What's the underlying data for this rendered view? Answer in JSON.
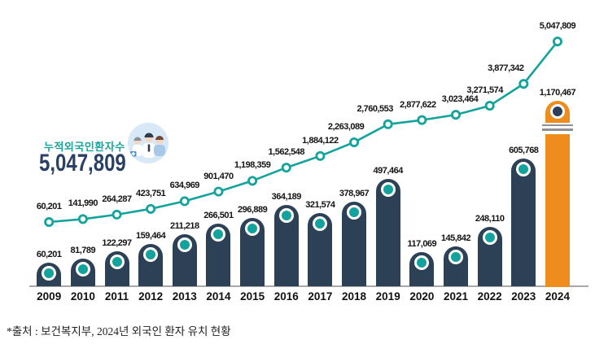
{
  "colors": {
    "teal": "#14a39c",
    "navy_bar": "#2d4156",
    "orange_highlight": "#ef8c1e",
    "navy_total_text": "#2a3f66",
    "label_text": "#141414",
    "axis_gray": "#a8a8a8",
    "icon_bg": "#d8e8f7"
  },
  "chart_data": {
    "type": "bar+line combo",
    "callout": {
      "label": "누적외국인환자수",
      "value": "5,047,809",
      "icon": "medical-team-icon"
    },
    "categories": [
      "2009",
      "2010",
      "2011",
      "2012",
      "2013",
      "2014",
      "2015",
      "2016",
      "2017",
      "2018",
      "2019",
      "2020",
      "2021",
      "2022",
      "2023",
      "2024"
    ],
    "series": [
      {
        "name": "annual_patients_bar",
        "type": "bar",
        "color": "#2d4156",
        "highlight_last_color": "#ef8c1e",
        "values": [
          60201,
          81789,
          122297,
          159464,
          211218,
          266501,
          296889,
          364189,
          321574,
          378967,
          497464,
          117069,
          145842,
          248110,
          605768,
          1170467
        ],
        "labels": [
          "60,201",
          "81,789",
          "122,297",
          "159,464",
          "211,218",
          "266,501",
          "296,889",
          "364,189",
          "321,574",
          "378,967",
          "497,464",
          "117,069",
          "145,842",
          "248,110",
          "605,768",
          "1,170,467"
        ]
      },
      {
        "name": "cumulative_patients_line",
        "type": "line",
        "color": "#14a39c",
        "values": [
          60201,
          141990,
          264287,
          423751,
          634969,
          901470,
          1198359,
          1562548,
          1884122,
          2263089,
          2760553,
          2877622,
          3023464,
          3271574,
          3877342,
          5047809
        ],
        "labels": [
          "60,201",
          "141,990",
          "264,287",
          "423,751",
          "634,969",
          "901,470",
          "1,198,359",
          "1,562,548",
          "1,884,122",
          "2,263,089",
          "2,760,553",
          "2,877,622",
          "3,023,464",
          "3,271,574",
          "3,877,342",
          "5,047,809"
        ]
      }
    ],
    "ylim_bar": [
      0,
      1200000
    ],
    "ylim_line": [
      0,
      5200000
    ],
    "gridlines": false,
    "legend": "none",
    "axis_break_on_last_bar": true,
    "source_note": "*출처 : 보건복지부, 2024년 외국인 환자 유치 현황"
  }
}
